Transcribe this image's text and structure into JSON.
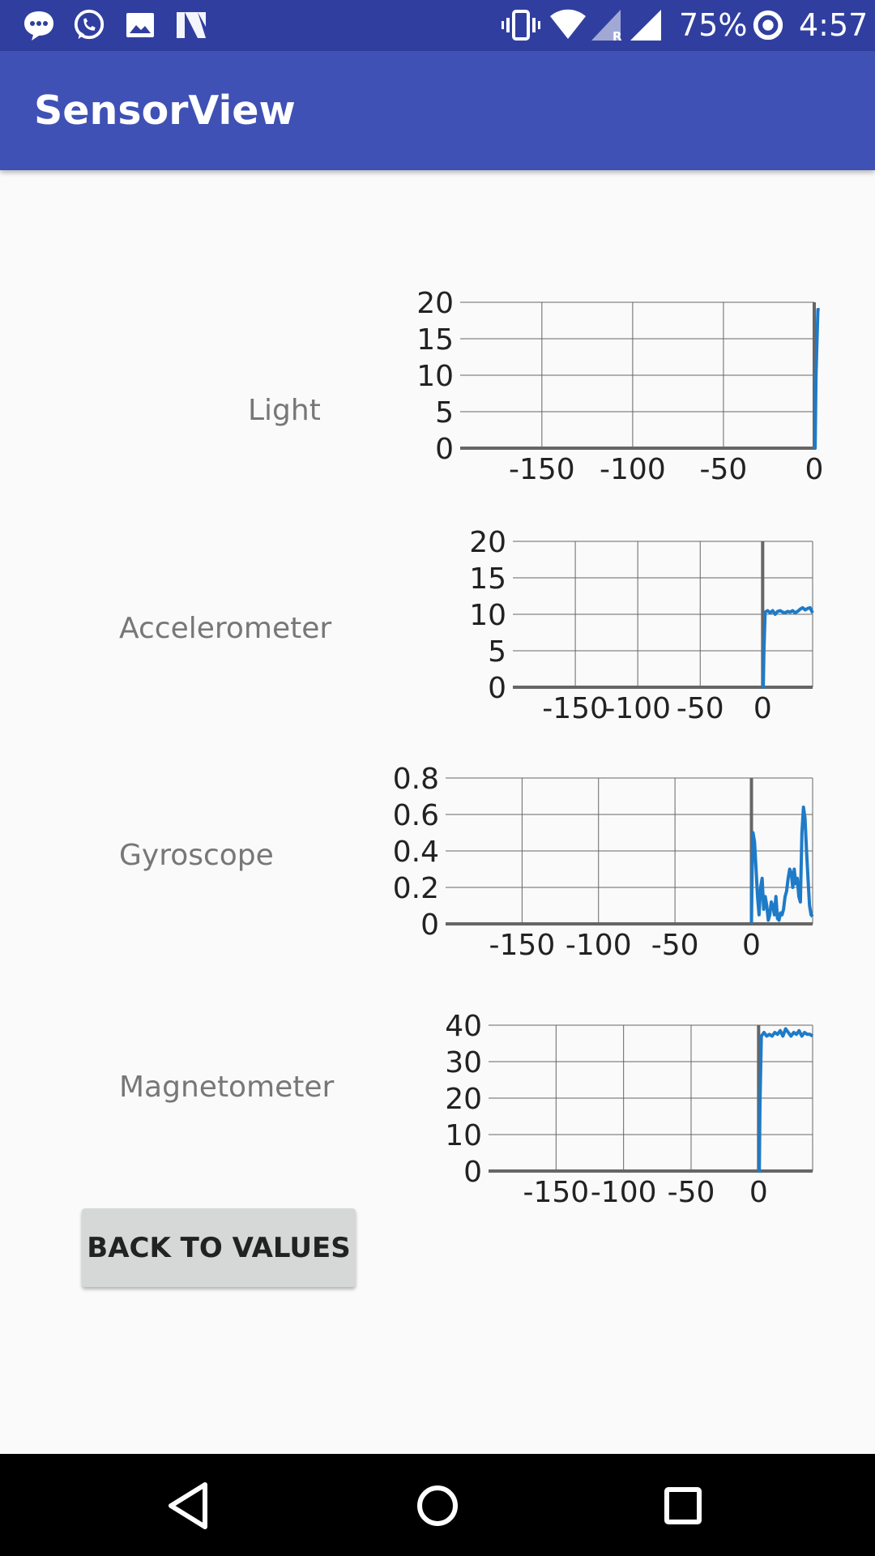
{
  "status_bar": {
    "battery_percent": "75%",
    "time": "4:57",
    "notification_icons": [
      "chat-bubble-icon",
      "whatsapp-icon",
      "image-icon",
      "n-logo-icon"
    ],
    "system_icons": [
      "vibrate-icon",
      "wifi-icon",
      "signal-roaming-icon",
      "signal-icon",
      "sync-icon"
    ]
  },
  "app_bar": {
    "title": "SensorView"
  },
  "sensors": [
    {
      "label": "Light"
    },
    {
      "label": "Accelerometer"
    },
    {
      "label": "Gyroscope"
    },
    {
      "label": "Magnetometer"
    }
  ],
  "back_button": {
    "label": "BACK TO VALUES"
  },
  "nav_bar": {
    "icons": [
      "back-icon",
      "home-icon",
      "recents-icon"
    ]
  },
  "chart_data": [
    {
      "type": "line",
      "sensor": "Light",
      "ylim": [
        0,
        20
      ],
      "xlim": [
        -195,
        0
      ],
      "ytick_labels": [
        "20",
        "15",
        "10",
        "5",
        "0"
      ],
      "xtick_labels": [
        "-150",
        "-100",
        "-50",
        "0"
      ],
      "grid": true,
      "color": "#1e7bc8",
      "series": [
        {
          "x": [
            0,
            0.5,
            1,
            2,
            3
          ],
          "y": [
            0,
            0,
            10,
            19,
            19
          ]
        }
      ]
    },
    {
      "type": "line",
      "sensor": "Accelerometer",
      "ylim": [
        0,
        20
      ],
      "xlim": [
        -200,
        40
      ],
      "ytick_labels": [
        "20",
        "15",
        "10",
        "5",
        "0"
      ],
      "xtick_labels": [
        "-150",
        "-100",
        "-50",
        "0"
      ],
      "grid": true,
      "color": "#1e7bc8",
      "series": [
        {
          "x": [
            0,
            0.5,
            1,
            2,
            4,
            6,
            8,
            10,
            12,
            14,
            16,
            18,
            20,
            22,
            24,
            26,
            28,
            30,
            32,
            34,
            36,
            38,
            40
          ],
          "y": [
            0,
            0,
            5,
            10.3,
            10.5,
            10.2,
            10.5,
            10.0,
            10.4,
            10.5,
            10.3,
            10.2,
            10.4,
            10.3,
            10.5,
            10.2,
            10.4,
            10.7,
            10.9,
            10.6,
            10.8,
            10.9,
            10.2
          ]
        }
      ]
    },
    {
      "type": "line",
      "sensor": "Gyroscope",
      "ylim": [
        0,
        0.8
      ],
      "xlim": [
        -200,
        40
      ],
      "ytick_labels": [
        "0.8",
        "0.6",
        "0.4",
        "0.2",
        "0"
      ],
      "xtick_labels": [
        "-150",
        "-100",
        "-50",
        "0"
      ],
      "grid": true,
      "color": "#1e7bc8",
      "series": [
        {
          "x": [
            0,
            0.5,
            1,
            2,
            3,
            4,
            5,
            6,
            7,
            8,
            9,
            10,
            11,
            12,
            13,
            14,
            15,
            16,
            17,
            18,
            19,
            20,
            21,
            22,
            23,
            24,
            25,
            26,
            27,
            28,
            29,
            30,
            31,
            32,
            33,
            34,
            35,
            36,
            37,
            38,
            39,
            40
          ],
          "y": [
            0,
            0.3,
            0.5,
            0.45,
            0.3,
            0.15,
            0.05,
            0.2,
            0.25,
            0.08,
            0.15,
            0.1,
            0.02,
            0.05,
            0.12,
            0.1,
            0.05,
            0.15,
            0.03,
            0.02,
            0.06,
            0.05,
            0.08,
            0.15,
            0.18,
            0.25,
            0.3,
            0.28,
            0.2,
            0.3,
            0.22,
            0.25,
            0.15,
            0.12,
            0.5,
            0.64,
            0.58,
            0.4,
            0.25,
            0.1,
            0.05,
            0.04
          ]
        }
      ]
    },
    {
      "type": "line",
      "sensor": "Magnetometer",
      "ylim": [
        0,
        40
      ],
      "xlim": [
        -200,
        40
      ],
      "ytick_labels": [
        "40",
        "30",
        "20",
        "10",
        "0"
      ],
      "xtick_labels": [
        "-150",
        "-100",
        "-50",
        "0"
      ],
      "grid": true,
      "color": "#1e7bc8",
      "series": [
        {
          "x": [
            0,
            0.5,
            1,
            2,
            4,
            6,
            8,
            10,
            12,
            14,
            16,
            18,
            20,
            22,
            24,
            26,
            28,
            30,
            32,
            34,
            36,
            38,
            40
          ],
          "y": [
            0,
            0,
            18,
            37,
            38,
            37,
            37.5,
            37,
            38,
            37.5,
            38.5,
            37,
            39,
            38,
            37,
            38,
            37.5,
            38.5,
            37,
            38,
            37.5,
            37.5,
            37
          ]
        }
      ]
    }
  ]
}
